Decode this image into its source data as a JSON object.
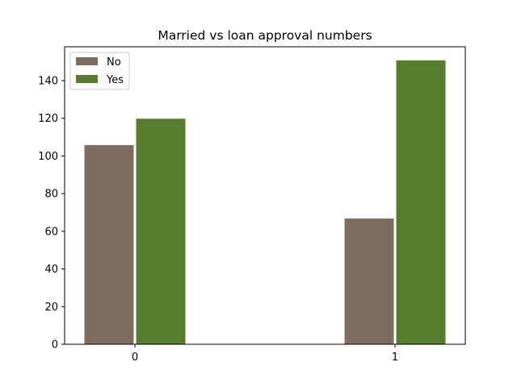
{
  "chart_data": {
    "type": "bar",
    "title": "Married vs loan approval numbers",
    "xlabel": "",
    "ylabel": "",
    "categories": [
      "0",
      "1"
    ],
    "series": [
      {
        "name": "No",
        "values": [
          106,
          67
        ],
        "color": "#7f6d5f"
      },
      {
        "name": "Yes",
        "values": [
          120,
          151
        ],
        "color": "#557f2d"
      }
    ],
    "ylim": [
      0,
      158
    ],
    "yticks": [
      0,
      20,
      40,
      60,
      80,
      100,
      120,
      140
    ],
    "grid": false,
    "legend_position": "top-left"
  }
}
